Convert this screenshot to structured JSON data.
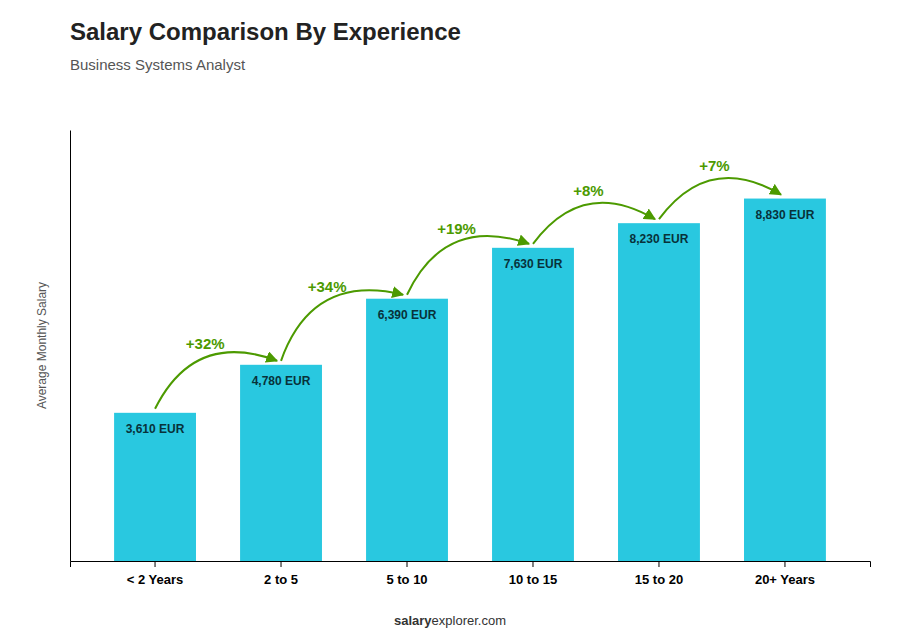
{
  "chart_data": {
    "type": "bar",
    "title": "Salary Comparison By Experience",
    "subtitle": "Business Systems Analyst",
    "ylabel": "Average Monthly Salary",
    "categories": [
      "< 2 Years",
      "2 to 5",
      "5 to 10",
      "10 to 15",
      "15 to 20",
      "20+ Years"
    ],
    "values": [
      3610,
      4780,
      6390,
      7630,
      8230,
      8830
    ],
    "value_labels": [
      "3,610 EUR",
      "4,780 EUR",
      "6,390 EUR",
      "7,630 EUR",
      "8,230 EUR",
      "8,830 EUR"
    ],
    "data_labels": true,
    "color": "#29c8e0",
    "annotations": [
      "+32%",
      "+34%",
      "+19%",
      "+8%",
      "+7%"
    ],
    "footer": [
      "salary",
      "explorer.com"
    ],
    "ylim": [
      0,
      10500
    ],
    "tick_labels": "x"
  }
}
